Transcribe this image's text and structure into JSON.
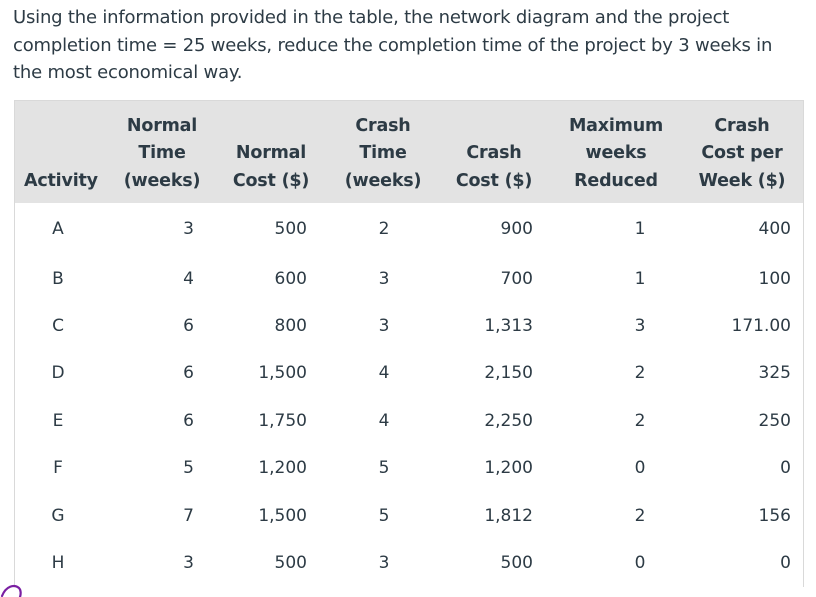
{
  "question": "Using the information provided in the table, the network diagram and the project completion time = 25 weeks, reduce the completion time of the project by 3 weeks in the most economical way.",
  "table": {
    "headers": [
      {
        "key": "activity",
        "lines": [
          "Activity"
        ]
      },
      {
        "key": "normal_time",
        "lines": [
          "Normal",
          "Time",
          "(weeks)"
        ]
      },
      {
        "key": "normal_cost",
        "lines": [
          "Normal",
          "Cost ($)"
        ]
      },
      {
        "key": "crash_time",
        "lines": [
          "Crash",
          "Time",
          "(weeks)"
        ]
      },
      {
        "key": "crash_cost",
        "lines": [
          "Crash",
          "Cost ($)"
        ]
      },
      {
        "key": "max_weeks_reduced",
        "lines": [
          "Maximum",
          "weeks",
          "Reduced"
        ]
      },
      {
        "key": "crash_cost_per_week",
        "lines": [
          "Crash",
          "Cost per",
          "Week ($)"
        ]
      }
    ],
    "rows": [
      [
        "A",
        "3",
        "500",
        "2",
        "900",
        "1",
        "400"
      ],
      [
        "B",
        "4",
        "600",
        "3",
        "700",
        "1",
        "100"
      ],
      [
        "C",
        "6",
        "800",
        "3",
        "1,313",
        "3",
        "171.00"
      ],
      [
        "D",
        "6",
        "1,500",
        "4",
        "2,150",
        "2",
        "325"
      ],
      [
        "E",
        "6",
        "1,750",
        "4",
        "2,250",
        "2",
        "250"
      ],
      [
        "F",
        "5",
        "1,200",
        "5",
        "1,200",
        "0",
        "0"
      ],
      [
        "G",
        "7",
        "1,500",
        "5",
        "1,812",
        "2",
        "156"
      ],
      [
        "H",
        "3",
        "500",
        "3",
        "500",
        "0",
        "0"
      ]
    ]
  }
}
